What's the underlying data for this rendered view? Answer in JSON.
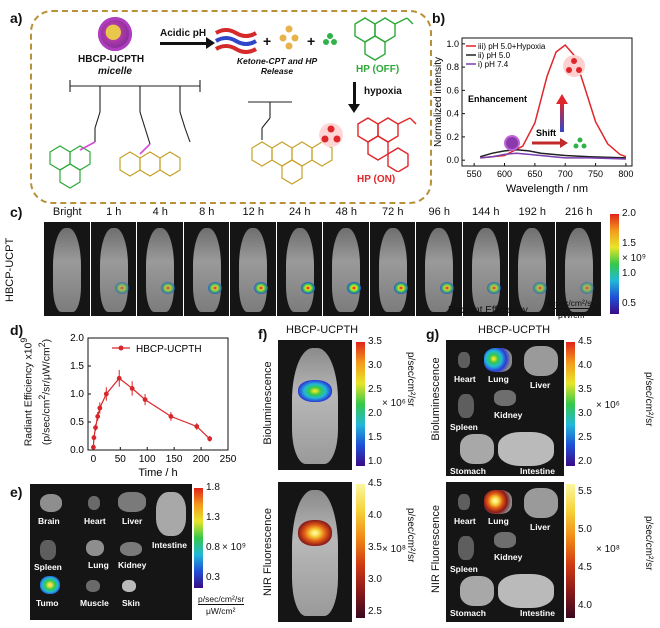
{
  "panel_labels": {
    "a": "a)",
    "b": "b)",
    "c": "c)",
    "d": "d)",
    "e": "e)",
    "f": "f)",
    "g": "g)"
  },
  "panel_a": {
    "micelle_name": "HBCP-UCPTH",
    "micelle_word": "micelle",
    "acidic": "Acidic pH",
    "release": "Ketone-CPT and HP Release",
    "hp_off": "HP (OFF)",
    "hypoxia": "hypoxia",
    "hp_on": "HP (ON)",
    "plus": "+"
  },
  "panel_b": {
    "legend": [
      "iii) pH 5.0+Hypoxia",
      "ii) pH 5.0",
      "i) pH 7.4"
    ],
    "annot_enhancement": "Enhancement",
    "annot_shift": "Shift",
    "xlabel": "Wavelength / nm",
    "ylabel": "Normalized intensity",
    "xticks": [
      "550",
      "600",
      "650",
      "700",
      "750",
      "800"
    ],
    "yticks": [
      "0.0",
      "0.2",
      "0.4",
      "0.6",
      "0.8",
      "1.0"
    ]
  },
  "panel_c": {
    "row_label": "HBCP-UCPT",
    "timepoints": [
      "Bright",
      "1 h",
      "4 h",
      "8 h",
      "12 h",
      "24 h",
      "48 h",
      "72 h",
      "96 h",
      "144 h",
      "192 h",
      "216 h"
    ],
    "cbar_ticks": [
      "2.0",
      "1.5",
      "1.0",
      "0.5"
    ],
    "cbar_mult": "× 10⁹",
    "cbar_title": "Radiant Efficiency",
    "cbar_unit_top": "p/sec/cm²/sr",
    "cbar_unit_bottom": "μW/cm²"
  },
  "panel_e": {
    "organs": [
      "Brain",
      "Heart",
      "Liver",
      "Intestine",
      "Spleen",
      "Lung",
      "Kidney",
      "Tumo",
      "Muscle",
      "Skin"
    ],
    "cbar_ticks": [
      "1.8",
      "1.3",
      "0.8",
      "0.3"
    ],
    "cbar_mult": "× 10⁹",
    "cbar_unit_top": "p/sec/cm²/sr",
    "cbar_unit_bottom": "μW/cm²"
  },
  "panel_f": {
    "title": "HBCP-UCPTH",
    "label_top": "Bioluminescence",
    "label_bottom": "NIR Fluorescence",
    "top_ticks": [
      "3.5",
      "3.0",
      "2.5",
      "2.0",
      "1.5",
      "1.0"
    ],
    "top_mult": "× 10⁶",
    "bottom_ticks": [
      "4.5",
      "4.0",
      "3.5",
      "3.0",
      "2.5"
    ],
    "bottom_mult": "× 10⁸",
    "unit": "p/sec/cm²/sr"
  },
  "panel_g": {
    "title": "HBCP-UCPTH",
    "label_top": "Bioluminescence",
    "label_bottom": "NIR Fluorescence",
    "organs": [
      "Heart",
      "Lung",
      "Liver",
      "Kidney",
      "Spleen",
      "Stomach",
      "Intestine"
    ],
    "top_ticks": [
      "4.5",
      "4.0",
      "3.5",
      "3.0",
      "2.5",
      "2.0"
    ],
    "top_mult": "× 10⁶",
    "bottom_ticks": [
      "5.5",
      "5.0",
      "4.5",
      "4.0"
    ],
    "bottom_mult": "× 10⁸",
    "unit": "p/sec/cm²/sr"
  },
  "chart_data": [
    {
      "type": "line",
      "panel": "b",
      "xlabel": "Wavelength / nm",
      "ylabel": "Normalized intensity",
      "xlim": [
        530,
        810
      ],
      "ylim": [
        -0.05,
        1.05
      ],
      "series": [
        {
          "name": "iii) pH 5.0+Hypoxia",
          "color": "#e0262a",
          "x": [
            560,
            600,
            630,
            650,
            670,
            685,
            700,
            715,
            730,
            750,
            770,
            790,
            800
          ],
          "y": [
            0.02,
            0.04,
            0.12,
            0.32,
            0.72,
            0.93,
            0.99,
            0.9,
            0.66,
            0.33,
            0.14,
            0.05,
            0.03
          ]
        },
        {
          "name": "ii) pH 5.0",
          "color": "#222222",
          "x": [
            560,
            580,
            600,
            620,
            640,
            660,
            680,
            700,
            740,
            800
          ],
          "y": [
            0.03,
            0.06,
            0.08,
            0.09,
            0.08,
            0.06,
            0.05,
            0.04,
            0.03,
            0.02
          ]
        },
        {
          "name": "i) pH 7.4",
          "color": "#7a3fb0",
          "x": [
            560,
            580,
            600,
            620,
            640,
            660,
            680,
            700,
            740,
            800
          ],
          "y": [
            0.02,
            0.03,
            0.05,
            0.06,
            0.05,
            0.04,
            0.03,
            0.02,
            0.02,
            0.01
          ]
        }
      ]
    },
    {
      "type": "line",
      "panel": "d",
      "legend": "HBCP-UCPTH",
      "xlabel": "Time / h",
      "ylabel": "Radiant Efficiency x10⁹ (p/sec/cm²/sr/μW/cm²)",
      "xlim": [
        -10,
        250
      ],
      "ylim": [
        0,
        2.0
      ],
      "xticks": [
        0,
        50,
        100,
        150,
        200,
        250
      ],
      "yticks": [
        0.0,
        0.5,
        1.0,
        1.5,
        2.0
      ],
      "color": "#d9262a",
      "series": [
        {
          "name": "HBCP-UCPTH",
          "x": [
            0,
            1,
            4,
            8,
            12,
            24,
            48,
            72,
            96,
            144,
            192,
            216
          ],
          "y": [
            0.05,
            0.22,
            0.4,
            0.6,
            0.75,
            1.0,
            1.28,
            1.1,
            0.9,
            0.6,
            0.42,
            0.2
          ],
          "err": [
            0.03,
            0.05,
            0.06,
            0.08,
            0.1,
            0.12,
            0.15,
            0.13,
            0.1,
            0.08,
            0.06,
            0.05
          ]
        }
      ]
    }
  ]
}
